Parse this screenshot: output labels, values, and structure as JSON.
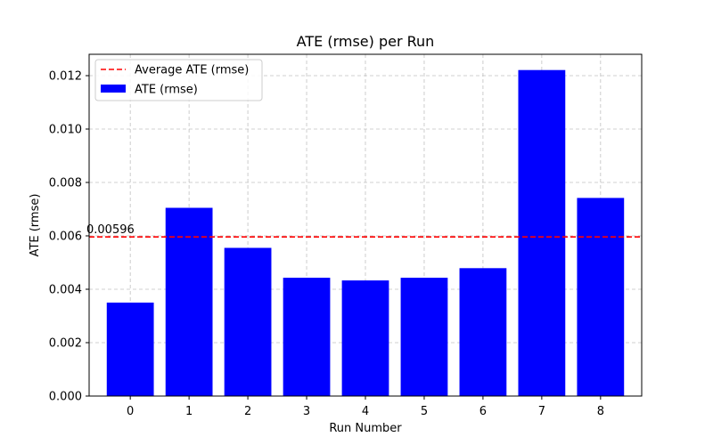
{
  "chart_data": {
    "type": "bar",
    "title": "ATE (rmse) per Run",
    "xlabel": "Run Number",
    "ylabel": "ATE (rmse)",
    "categories": [
      "0",
      "1",
      "2",
      "3",
      "4",
      "5",
      "6",
      "7",
      "8"
    ],
    "series": [
      {
        "name": "ATE (rmse)",
        "values": [
          0.0035,
          0.00705,
          0.00555,
          0.00443,
          0.00433,
          0.00443,
          0.00479,
          0.01221,
          0.00742
        ],
        "color": "#0000ff"
      }
    ],
    "average_line": {
      "name": "Average ATE (rmse)",
      "value": 0.00596,
      "label": "0.00596",
      "color": "#ff0000",
      "style": "dashed"
    },
    "ylim": [
      0,
      0.0128
    ],
    "yticks": [
      "0.000",
      "0.002",
      "0.004",
      "0.006",
      "0.008",
      "0.010",
      "0.012"
    ],
    "ytick_values": [
      0,
      0.002,
      0.004,
      0.006,
      0.008,
      0.01,
      0.012
    ],
    "grid": true,
    "legend_position": "top-left"
  }
}
